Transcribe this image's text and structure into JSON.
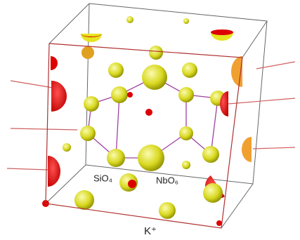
{
  "labels": {
    "sio4": "SiO₄",
    "nbo6": "NbO₆",
    "k": "K⁺"
  }
}
